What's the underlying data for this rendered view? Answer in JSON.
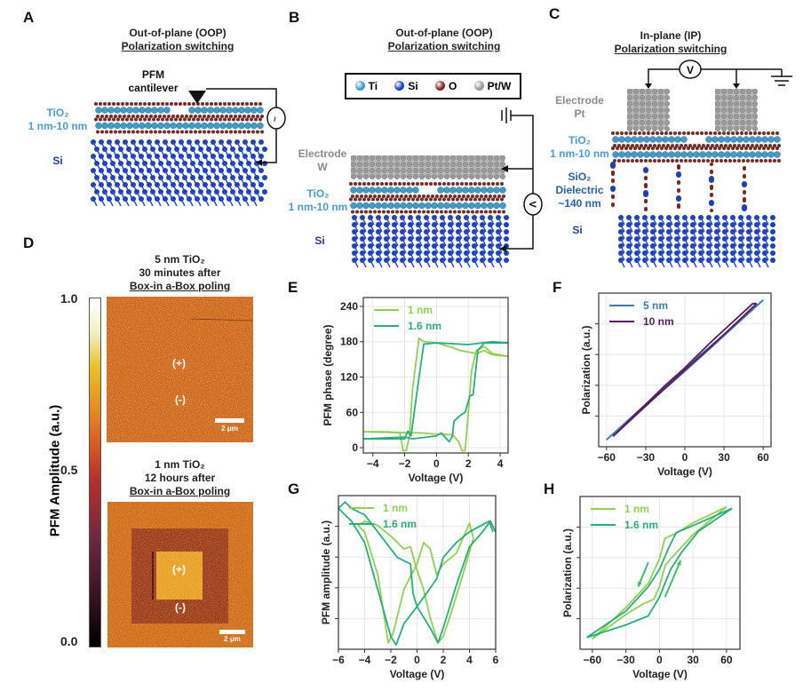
{
  "panels": {
    "A": "A",
    "B": "B",
    "C": "C",
    "D": "D",
    "E": "E",
    "F": "F",
    "G": "G",
    "H": "H"
  },
  "a": {
    "title1": "Out-of-plane (OOP)",
    "title2": "Polarization switching",
    "cantilever": "PFM cantilever",
    "tio2": "TiO₂",
    "tio2_thickness": "1 nm-10 nm",
    "si": "Si",
    "source_icon": "current-source"
  },
  "b": {
    "title1": "Out-of-plane (OOP)",
    "title2": "Polarization switching",
    "legend": [
      {
        "label": "Ti",
        "color": "#3f9cc8"
      },
      {
        "label": "Si",
        "color": "#1d3fc0"
      },
      {
        "label": "O",
        "color": "#7a2a22"
      },
      {
        "label": "Pt/W",
        "color": "#9a9a9a"
      }
    ],
    "electrode": "Electrode",
    "electrode_metal": "W",
    "tio2": "TiO₂",
    "tio2_thickness": "1 nm-10 nm",
    "si": "Si",
    "voltmeter": "V"
  },
  "c": {
    "title1": "In-plane (IP)",
    "title2": "Polarization switching",
    "voltmeter": "V",
    "electrode": "Electrode",
    "electrode_metal": "Pt",
    "tio2": "TiO₂",
    "tio2_thickness": "1 nm-10 nm",
    "sio2": "SiO₂",
    "dielectric": "Dielectric",
    "sio2_thickness": "~140 nm",
    "si": "Si"
  },
  "d": {
    "colorbar_label": "PFM Amplitude (a.u.)",
    "colorbar_ticks": [
      "1.0",
      "0.5",
      "0.0"
    ],
    "top": {
      "line1": "5 nm TiO₂",
      "line2": "30 minutes after",
      "line3": "Box-in a-Box poling",
      "plus": "(+)",
      "minus": "(-)",
      "scalebar": "2 μm"
    },
    "bottom": {
      "line1": "1 nm TiO₂",
      "line2": "12 hours after",
      "line3": "Box-in a-Box poling",
      "plus": "(+)",
      "minus": "(-)",
      "scalebar": "2 μm"
    }
  },
  "chart_data": [
    {
      "panel": "E",
      "type": "line",
      "xlabel": "Voltage (V)",
      "ylabel": "PFM phase (degree)",
      "xlim": [
        -4.6,
        4.5
      ],
      "ylim": [
        -9,
        255
      ],
      "xticks": [
        "-4",
        "-2",
        "0",
        "2",
        "4"
      ],
      "yticks": [
        "0",
        "60",
        "120",
        "180",
        "240"
      ],
      "grid": true,
      "legend": "top-left",
      "series": [
        {
          "name": "1 nm",
          "color": "#8fd14f",
          "branches": [
            [
              [
                4.5,
                155
              ],
              [
                3.5,
                158
              ],
              [
                3,
                165
              ],
              [
                2.5,
                160
              ],
              [
                1.5,
                165
              ],
              [
                1,
                170
              ],
              [
                0,
                178
              ],
              [
                -0.8,
                180
              ],
              [
                -1.1,
                186
              ],
              [
                -1.5,
                100
              ],
              [
                -1.7,
                20
              ],
              [
                -1.9,
                -5
              ],
              [
                -2.1,
                -5
              ],
              [
                -2.3,
                25
              ],
              [
                -3,
                27
              ],
              [
                -4.6,
                27
              ]
            ],
            [
              [
                -4.6,
                27
              ],
              [
                -3,
                26
              ],
              [
                -1,
                25
              ],
              [
                0,
                23
              ],
              [
                1,
                22
              ],
              [
                1.4,
                10
              ],
              [
                1.6,
                -5
              ],
              [
                1.8,
                -5
              ],
              [
                2,
                60
              ],
              [
                2.2,
                130
              ],
              [
                2.5,
                165
              ],
              [
                3,
                172
              ],
              [
                3.5,
                160
              ],
              [
                4.5,
                155
              ]
            ]
          ]
        },
        {
          "name": "1.6 nm",
          "color": "#25b07a",
          "branches": [
            [
              [
                4.5,
                178
              ],
              [
                3.5,
                180
              ],
              [
                2,
                175
              ],
              [
                0,
                178
              ],
              [
                -0.8,
                176
              ],
              [
                -1.2,
                100
              ],
              [
                -1.6,
                20
              ],
              [
                -1.8,
                28
              ],
              [
                -2,
                15
              ],
              [
                -3,
                15
              ],
              [
                -4.6,
                15
              ]
            ],
            [
              [
                -4.6,
                15
              ],
              [
                -2,
                18
              ],
              [
                -1.5,
                15
              ],
              [
                0,
                20
              ],
              [
                0.3,
                25
              ],
              [
                0.8,
                10
              ],
              [
                1,
                20
              ],
              [
                1.1,
                45
              ],
              [
                1.5,
                55
              ],
              [
                1.8,
                60
              ],
              [
                2.1,
                88
              ],
              [
                2.3,
                90
              ],
              [
                2.6,
                165
              ],
              [
                3,
                178
              ],
              [
                4.5,
                178
              ]
            ]
          ]
        }
      ]
    },
    {
      "panel": "F",
      "type": "line",
      "xlabel": "Voltage (V)",
      "ylabel": "Polarization (a.u.)",
      "xlim": [
        -66,
        66
      ],
      "ylim": [
        -1.1,
        1.1
      ],
      "xticks": [
        "-60",
        "-30",
        "0",
        "30",
        "60"
      ],
      "yticks": [],
      "grid": true,
      "legend": "top-left",
      "series": [
        {
          "name": "5 nm",
          "color": "#3d7fa8",
          "branches": [
            [
              [
                -60,
                -1
              ],
              [
                0,
                -0.02
              ],
              [
                60,
                1
              ]
            ],
            [
              [
                60,
                1
              ],
              [
                0,
                0.02
              ],
              [
                -60,
                -1
              ]
            ]
          ]
        },
        {
          "name": "10 nm",
          "color": "#5b1a60",
          "branches": [
            [
              [
                -55,
                -0.95
              ],
              [
                -15,
                -0.22
              ],
              [
                0,
                0.03
              ],
              [
                20,
                0.4
              ],
              [
                52,
                0.95
              ],
              [
                55,
                0.95
              ]
            ],
            [
              [
                55,
                0.95
              ],
              [
                20,
                0.33
              ],
              [
                0,
                0
              ],
              [
                -55,
                -0.95
              ]
            ]
          ]
        }
      ]
    },
    {
      "panel": "G",
      "type": "line",
      "xlabel": "Voltage (V)",
      "ylabel": "PFM amplitude (a.u.)",
      "xlim": [
        -6,
        6
      ],
      "ylim": [
        0,
        0.72
      ],
      "xticks": [
        "-6",
        "-4",
        "-2",
        "0",
        "2",
        "4",
        "6"
      ],
      "yticks": [],
      "grid": true,
      "legend": "top-left",
      "series": [
        {
          "name": "1 nm",
          "color": "#8fd14f",
          "branches": [
            [
              [
                -4.5,
                0.58
              ],
              [
                -4,
                0.55
              ],
              [
                -3,
                0.35
              ],
              [
                -2.5,
                0.15
              ],
              [
                -2.2,
                0.03
              ],
              [
                -1.8,
                0.08
              ],
              [
                -1,
                0.28
              ],
              [
                0,
                0.4
              ],
              [
                0.5,
                0.5
              ],
              [
                1,
                0.47
              ],
              [
                1.5,
                0.35
              ],
              [
                2,
                0.4
              ],
              [
                3,
                0.45
              ],
              [
                4,
                0.59
              ],
              [
                4.3,
                0.52
              ]
            ],
            [
              [
                4.3,
                0.52
              ],
              [
                3.5,
                0.35
              ],
              [
                2.5,
                0.15
              ],
              [
                2,
                0.06
              ],
              [
                1.6,
                0.03
              ],
              [
                1,
                0.15
              ],
              [
                0.5,
                0.28
              ],
              [
                0,
                0.37
              ],
              [
                -0.5,
                0.48
              ],
              [
                -1,
                0.47
              ],
              [
                -2,
                0.53
              ],
              [
                -3,
                0.58
              ],
              [
                -4,
                0.6
              ],
              [
                -4.5,
                0.58
              ]
            ]
          ]
        },
        {
          "name": "1.6 nm",
          "color": "#25b07a",
          "branches": [
            [
              [
                5.8,
                0.55
              ],
              [
                5.5,
                0.6
              ],
              [
                4,
                0.55
              ],
              [
                3,
                0.5
              ],
              [
                2,
                0.43
              ],
              [
                1.5,
                0.33
              ],
              [
                0,
                0.2
              ],
              [
                -0.3,
                0.26
              ],
              [
                -0.5,
                0.4
              ],
              [
                -1.5,
                0.43
              ],
              [
                -2,
                0.47
              ],
              [
                -3,
                0.55
              ],
              [
                -4,
                0.63
              ],
              [
                -5,
                0.66
              ],
              [
                -5.5,
                0.69
              ],
              [
                -6,
                0.66
              ]
            ],
            [
              [
                -6,
                0.66
              ],
              [
                -5,
                0.6
              ],
              [
                -4,
                0.5
              ],
              [
                -3,
                0.28
              ],
              [
                -2,
                0.06
              ],
              [
                -1.6,
                0.02
              ],
              [
                -1,
                0.12
              ],
              [
                0,
                0.2
              ],
              [
                1,
                0.1
              ],
              [
                1.6,
                0.03
              ],
              [
                2,
                0.1
              ],
              [
                3,
                0.3
              ],
              [
                4,
                0.48
              ],
              [
                5,
                0.55
              ],
              [
                5.6,
                0.6
              ],
              [
                6,
                0.55
              ]
            ]
          ]
        }
      ]
    },
    {
      "panel": "H",
      "type": "line",
      "xlabel": "Voltage (V)",
      "ylabel": "Polarization (a.u.)",
      "xlim": [
        -71,
        72
      ],
      "ylim": [
        -1.1,
        1.1
      ],
      "xticks": [
        "-60",
        "-30",
        "0",
        "30",
        "60"
      ],
      "yticks": [],
      "grid": true,
      "legend": "top-left",
      "series": [
        {
          "name": "1 nm",
          "color": "#8fd14f",
          "branches": [
            [
              [
                60,
                0.95
              ],
              [
                30,
                0.72
              ],
              [
                15,
                0.57
              ],
              [
                5,
                0.5
              ],
              [
                0,
                0.2
              ],
              [
                -10,
                -0.15
              ],
              [
                -30,
                -0.5
              ],
              [
                -60,
                -0.95
              ]
            ],
            [
              [
                -60,
                -0.95
              ],
              [
                -30,
                -0.6
              ],
              [
                -15,
                -0.45
              ],
              [
                -5,
                -0.38
              ],
              [
                0,
                -0.2
              ],
              [
                5,
                0.1
              ],
              [
                10,
                0.2
              ],
              [
                30,
                0.55
              ],
              [
                60,
                0.95
              ]
            ]
          ]
        },
        {
          "name": "1.6 nm",
          "color": "#25b07a",
          "branches": [
            [
              [
                65,
                0.93
              ],
              [
                30,
                0.68
              ],
              [
                15,
                0.58
              ],
              [
                8,
                0.35
              ],
              [
                0,
                0.05
              ],
              [
                -10,
                -0.2
              ],
              [
                -30,
                -0.55
              ],
              [
                -65,
                -0.93
              ]
            ],
            [
              [
                -65,
                -0.93
              ],
              [
                -30,
                -0.75
              ],
              [
                -10,
                -0.62
              ],
              [
                0,
                -0.35
              ],
              [
                10,
                0.05
              ],
              [
                20,
                0.3
              ],
              [
                35,
                0.6
              ],
              [
                65,
                0.93
              ]
            ]
          ]
        }
      ],
      "annotations": [
        {
          "type": "arrow",
          "from": [
            -10,
            0.15
          ],
          "to": [
            -19,
            -0.2
          ],
          "color": "#3cc060"
        },
        {
          "type": "arrow",
          "from": [
            5,
            -0.35
          ],
          "to": [
            19,
            0.18
          ],
          "color": "#3cc060"
        }
      ]
    }
  ]
}
